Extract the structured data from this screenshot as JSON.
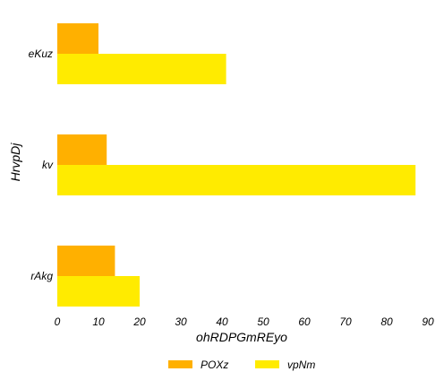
{
  "chart_data": {
    "type": "bar",
    "orientation": "horizontal",
    "categories": [
      "eKuz",
      "kv",
      "rAkg"
    ],
    "series": [
      {
        "name": "POXz",
        "color": "#ffb000",
        "values": [
          10,
          12,
          14
        ]
      },
      {
        "name": "vpNm",
        "color": "#ffeb00",
        "values": [
          41,
          87,
          20
        ]
      }
    ],
    "xlabel": "ohRDPGmREyo",
    "ylabel": "HrvpDj",
    "xlim": [
      0,
      90
    ],
    "xticks": [
      "0",
      "10",
      "20",
      "30",
      "40",
      "50",
      "60",
      "70",
      "80",
      "90"
    ],
    "grid": false,
    "legend_position": "bottom-center"
  }
}
